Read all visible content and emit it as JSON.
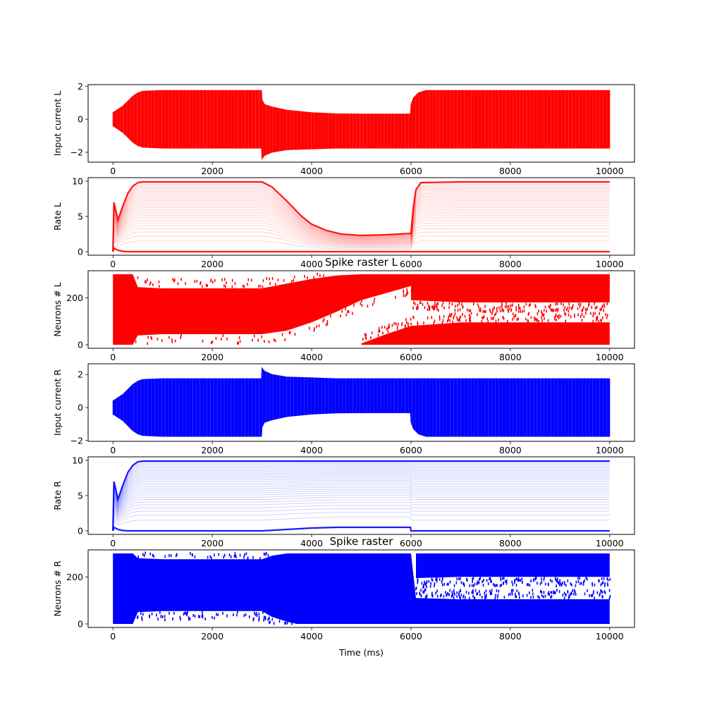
{
  "chart_data": [
    {
      "type": "area",
      "title": "",
      "xlabel": "",
      "ylabel": "Input current L",
      "xlim": [
        -500,
        10500
      ],
      "ylim": [
        -2.6,
        2.1
      ],
      "xticks": [
        0,
        2000,
        4000,
        6000,
        8000,
        10000
      ],
      "yticks": [
        -2,
        0,
        2
      ],
      "color": "#ff0000",
      "series": [
        {
          "x": [
            0,
            100,
            200,
            300,
            400,
            500,
            600,
            1000,
            2000,
            2990,
            3000,
            3050,
            3200,
            3500,
            4000,
            4500,
            5000,
            5500,
            5990,
            6000,
            6050,
            6150,
            6300,
            7000,
            8000,
            9000,
            10000
          ],
          "upper": [
            0.4,
            0.6,
            0.8,
            1.1,
            1.4,
            1.6,
            1.7,
            1.75,
            1.75,
            1.75,
            1.2,
            0.9,
            0.75,
            0.55,
            0.4,
            0.33,
            0.32,
            0.32,
            0.32,
            0.9,
            1.3,
            1.6,
            1.75,
            1.75,
            1.75,
            1.75,
            1.75
          ],
          "lower": [
            -0.4,
            -0.6,
            -0.8,
            -1.1,
            -1.4,
            -1.6,
            -1.7,
            -1.75,
            -1.75,
            -1.75,
            -2.4,
            -2.2,
            -2.0,
            -1.85,
            -1.8,
            -1.75,
            -1.75,
            -1.75,
            -1.75,
            -1.75,
            -1.75,
            -1.75,
            -1.75,
            -1.75,
            -1.75,
            -1.75,
            -1.75
          ]
        }
      ]
    },
    {
      "type": "line",
      "title": "",
      "xlabel": "",
      "ylabel": "Rate L",
      "xlim": [
        -500,
        10500
      ],
      "ylim": [
        -0.5,
        10.5
      ],
      "xticks": [
        0,
        2000,
        4000,
        6000,
        8000,
        10000
      ],
      "yticks": [
        0,
        5,
        10
      ],
      "color": "#ff0000",
      "series": [
        {
          "x": [
            0,
            20,
            100,
            200,
            300,
            400,
            500,
            600,
            1000,
            2000,
            2990,
            3000,
            3200,
            3500,
            3800,
            4000,
            4300,
            4600,
            5000,
            5500,
            5990,
            6000,
            6050,
            6100,
            6200,
            7000,
            8000,
            9000,
            10000
          ],
          "upper": [
            0,
            7,
            4.5,
            6.5,
            8.3,
            9.3,
            9.8,
            9.9,
            9.9,
            9.9,
            9.9,
            9.9,
            9.2,
            7.2,
            5.0,
            3.9,
            3.0,
            2.5,
            2.3,
            2.4,
            2.6,
            2.7,
            6.5,
            8.8,
            9.8,
            9.9,
            9.9,
            9.9,
            9.9
          ],
          "lower": [
            0,
            0.5,
            0.2,
            0.05,
            0,
            0,
            0,
            0,
            0,
            0,
            0,
            0,
            0,
            0,
            0,
            0,
            0,
            0,
            0,
            0,
            0,
            0,
            0,
            0,
            0,
            0,
            0,
            0,
            0
          ]
        }
      ]
    },
    {
      "type": "scatter",
      "title": "Spike raster L",
      "xlabel": "",
      "ylabel": "Neurons # L",
      "xlim": [
        -500,
        10500
      ],
      "ylim": [
        -15,
        315
      ],
      "xticks": [
        0,
        2000,
        4000,
        6000,
        8000,
        10000
      ],
      "yticks": [
        0,
        200
      ],
      "color": "#ff0000",
      "bands": [
        {
          "x": [
            0,
            400,
            500,
            1000,
            2000,
            3000,
            3500,
            4000,
            4500,
            5000,
            5500,
            6000,
            10000
          ],
          "low": [
            0,
            0,
            40,
            45,
            45,
            45,
            60,
            95,
            140,
            190,
            220,
            250,
            250
          ],
          "high": [
            300,
            300,
            245,
            240,
            240,
            240,
            260,
            280,
            295,
            300,
            300,
            300,
            300
          ]
        },
        {
          "x": [
            5000,
            5500,
            6000,
            7000,
            8000,
            10000
          ],
          "low": [
            0,
            0,
            0,
            0,
            0,
            0
          ],
          "high": [
            5,
            45,
            80,
            95,
            95,
            95
          ]
        },
        {
          "x": [
            6000,
            7000,
            8000,
            10000
          ],
          "low": [
            190,
            180,
            180,
            180
          ],
          "high": [
            300,
            300,
            300,
            300
          ]
        }
      ]
    },
    {
      "type": "area",
      "title": "",
      "xlabel": "",
      "ylabel": "Input current R",
      "xlim": [
        -500,
        10500
      ],
      "ylim": [
        -2.05,
        2.65
      ],
      "xticks": [
        0,
        2000,
        4000,
        6000,
        8000,
        10000
      ],
      "yticks": [
        -2,
        0,
        2
      ],
      "color": "#0000ff",
      "series": [
        {
          "x": [
            0,
            100,
            200,
            300,
            400,
            500,
            600,
            1000,
            2000,
            2990,
            3000,
            3050,
            3200,
            3500,
            4000,
            4500,
            5000,
            5500,
            5990,
            6000,
            6050,
            6150,
            6300,
            7000,
            8000,
            9000,
            10000
          ],
          "upper": [
            0.4,
            0.6,
            0.8,
            1.1,
            1.4,
            1.6,
            1.7,
            1.75,
            1.75,
            1.75,
            2.4,
            2.2,
            2.0,
            1.85,
            1.8,
            1.75,
            1.75,
            1.75,
            1.75,
            1.75,
            1.75,
            1.75,
            1.75,
            1.75,
            1.75,
            1.75,
            1.75
          ],
          "lower": [
            -0.4,
            -0.6,
            -0.8,
            -1.1,
            -1.4,
            -1.6,
            -1.7,
            -1.75,
            -1.75,
            -1.75,
            -1.2,
            -0.9,
            -0.75,
            -0.55,
            -0.4,
            -0.33,
            -0.32,
            -0.32,
            -0.32,
            -0.9,
            -1.3,
            -1.6,
            -1.75,
            -1.75,
            -1.75,
            -1.75,
            -1.75
          ]
        }
      ]
    },
    {
      "type": "line",
      "title": "",
      "xlabel": "",
      "ylabel": "Rate R",
      "xlim": [
        -500,
        10500
      ],
      "ylim": [
        -0.5,
        10.5
      ],
      "xticks": [
        0,
        2000,
        4000,
        6000,
        8000,
        10000
      ],
      "yticks": [
        0,
        5,
        10
      ],
      "color": "#0000ff",
      "series": [
        {
          "x": [
            0,
            20,
            100,
            200,
            300,
            400,
            500,
            600,
            1000,
            2000,
            2990,
            3000,
            3500,
            4000,
            4500,
            5000,
            5500,
            5990,
            6000,
            6100,
            7000,
            8000,
            9000,
            10000
          ],
          "upper": [
            0,
            7,
            4.5,
            6.5,
            8.3,
            9.3,
            9.8,
            9.9,
            9.9,
            9.9,
            9.9,
            9.9,
            9.9,
            9.9,
            9.9,
            9.9,
            9.9,
            9.9,
            9.9,
            9.9,
            9.9,
            9.9,
            9.9,
            9.9
          ],
          "lower": [
            0,
            0.5,
            0.2,
            0.05,
            0,
            0,
            0,
            0,
            0,
            0,
            0,
            0,
            0.2,
            0.4,
            0.5,
            0.5,
            0.5,
            0.5,
            0,
            0,
            0,
            0,
            0,
            0
          ]
        }
      ]
    },
    {
      "type": "scatter",
      "title": "Spike raster",
      "xlabel": "Time (ms)",
      "ylabel": "Neurons # R",
      "xlim": [
        -500,
        10500
      ],
      "ylim": [
        -15,
        315
      ],
      "xticks": [
        0,
        2000,
        4000,
        6000,
        8000,
        10000
      ],
      "yticks": [
        0,
        200
      ],
      "color": "#0000ff",
      "bands": [
        {
          "x": [
            0,
            400,
            500,
            1000,
            2000,
            3000,
            3200,
            3500,
            3700,
            6000
          ],
          "low": [
            0,
            0,
            50,
            55,
            55,
            55,
            30,
            10,
            0,
            0
          ],
          "high": [
            300,
            300,
            280,
            275,
            275,
            275,
            290,
            300,
            300,
            300
          ]
        },
        {
          "x": [
            6000,
            6100,
            7000,
            8000,
            10000
          ],
          "low": [
            0,
            0,
            0,
            0,
            0
          ],
          "high": [
            300,
            110,
            105,
            105,
            105
          ]
        },
        {
          "x": [
            6100,
            7000,
            8000,
            10000
          ],
          "low": [
            195,
            200,
            200,
            200
          ],
          "high": [
            300,
            300,
            300,
            300
          ]
        }
      ]
    }
  ]
}
